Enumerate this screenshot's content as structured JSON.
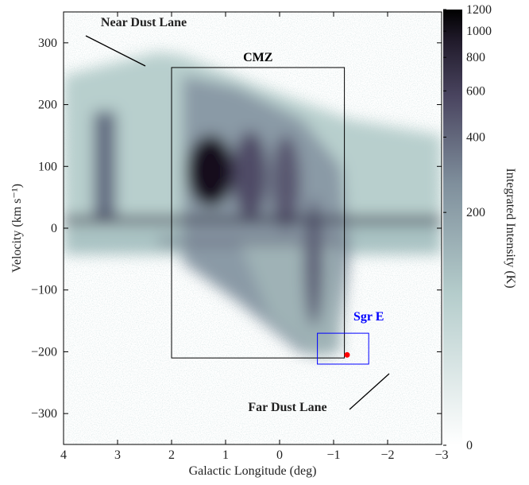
{
  "chart_data": {
    "type": "heatmap",
    "xlabel": "Galactic Longitude (deg)",
    "ylabel": "Velocity (km s⁻¹)",
    "xlim": [
      4,
      -3
    ],
    "ylim": [
      -350,
      350
    ],
    "xticks": [
      4,
      3,
      2,
      1,
      0,
      {
        "value": -1,
        "label": "−1"
      },
      {
        "value": -2,
        "label": "−2"
      },
      {
        "value": -3,
        "label": "−3"
      }
    ],
    "yticks": [
      {
        "value": -300,
        "label": "−300"
      },
      {
        "value": -200,
        "label": "−200"
      },
      {
        "value": -100,
        "label": "−100"
      },
      0,
      100,
      200,
      300
    ],
    "colorbar": {
      "label": "Integrated Intensity (K)",
      "lim": [
        0,
        1200
      ],
      "ticks": [
        0,
        200,
        400,
        600,
        800,
        1000,
        1200
      ],
      "scale": "log1p"
    },
    "regions": [
      {
        "label": "CMZ",
        "color": "#000000",
        "x": [
          2,
          -1.2
        ],
        "y": [
          -210,
          260
        ]
      },
      {
        "label": "Sgr E",
        "color": "#0000ff",
        "x": [
          -0.7,
          -1.65
        ],
        "y": [
          -220,
          -170
        ]
      }
    ],
    "points": [
      {
        "x": -1.25,
        "y": -205,
        "color": "#ff0000"
      }
    ],
    "annotations": [
      "Near Dust Lane",
      "Far Dust Lane"
    ]
  }
}
